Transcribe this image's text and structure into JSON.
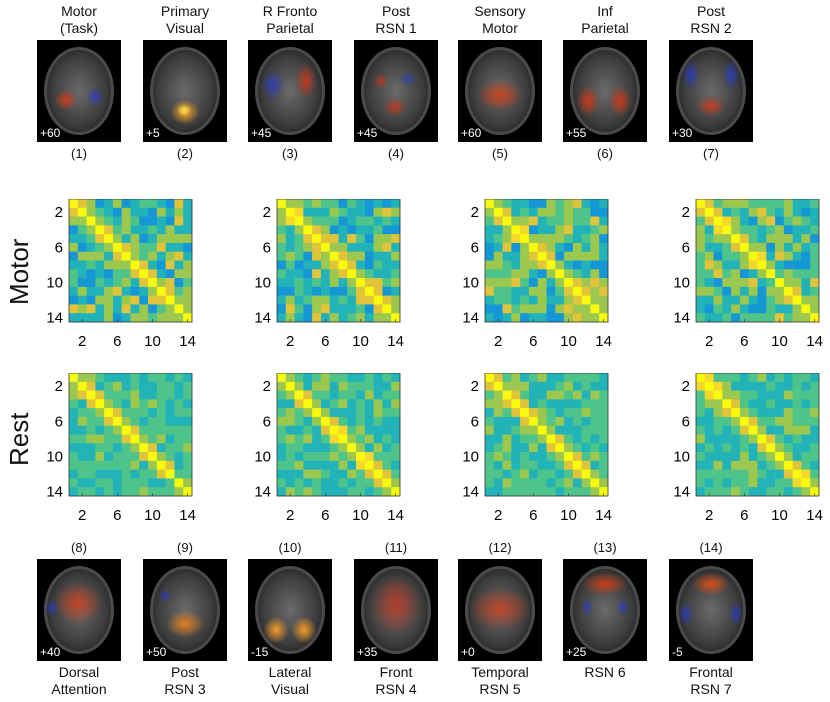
{
  "top_networks": [
    {
      "label": "Motor\n(Task)",
      "number": "(1)",
      "slice": "+60"
    },
    {
      "label": "Primary\nVisual",
      "number": "(2)",
      "slice": "+5"
    },
    {
      "label": "R Fronto\nParietal",
      "number": "(3)",
      "slice": "+45"
    },
    {
      "label": "Post\nRSN 1",
      "number": "(4)",
      "slice": "+45"
    },
    {
      "label": "Sensory\nMotor",
      "number": "(5)",
      "slice": "+60"
    },
    {
      "label": "Inf\nParietal",
      "number": "(6)",
      "slice": "+55"
    },
    {
      "label": "Post\nRSN 2",
      "number": "(7)",
      "slice": "+30"
    }
  ],
  "bottom_networks": [
    {
      "label": "Dorsal\nAttention",
      "number": "(8)",
      "slice": "+40"
    },
    {
      "label": "Post\nRSN 3",
      "number": "(9)",
      "slice": "+50"
    },
    {
      "label": "Lateral\nVisual",
      "number": "(10)",
      "slice": "-15"
    },
    {
      "label": "Front\nRSN 4",
      "number": "(11)",
      "slice": "+35"
    },
    {
      "label": "Temporal\nRSN 5",
      "number": "(12)",
      "slice": "+0"
    },
    {
      "label": "RSN 6",
      "number": "(13)",
      "slice": "+25"
    },
    {
      "label": "Frontal\nRSN 7",
      "number": "(14)",
      "slice": "-5"
    }
  ],
  "row_labels": {
    "motor": "Motor",
    "rest": "Rest"
  },
  "chart_data": {
    "type": "heatmap",
    "description_rows": [
      "Motor",
      "Rest"
    ],
    "size": 14,
    "tick_labels": [
      "2",
      "6",
      "10",
      "14"
    ],
    "tick_values": [
      2,
      6,
      10,
      14
    ],
    "colormap": "parula",
    "diagonal_value": 1.0
  },
  "colors": {
    "text": "#111111",
    "background": "#ffffff"
  }
}
